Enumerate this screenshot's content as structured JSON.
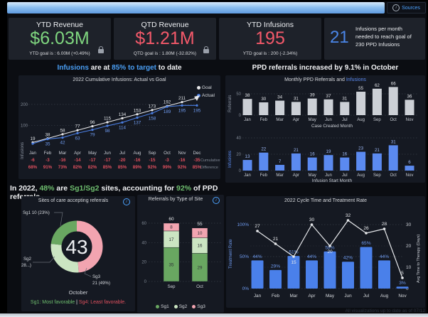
{
  "icons": {
    "info": "i"
  },
  "top_bar": {
    "sources_label": "Sources"
  },
  "kpi_cards": [
    {
      "title": "YTD Revenue",
      "value": "$6.03M",
      "footer": "YTD goal is : 6.00M (+0.49%)"
    },
    {
      "title": "QTD Revenue",
      "value": "$1.21M",
      "footer": "QTD goal is : 1.80M (-32.82%)"
    },
    {
      "title": "YTD Infusions",
      "value": "195",
      "footer": "YTD goal is : 200 (-2.34%)"
    },
    {
      "value": "21",
      "text": "Infusions per month needed to reach goal of 230 PPD Infusions"
    }
  ],
  "headlines": {
    "infusions": [
      {
        "t": "Infusions"
      },
      {
        "t": " are at "
      },
      {
        "t": "85% to target"
      },
      {
        "t": " to date"
      }
    ],
    "referrals": "PPD referrals increased by 9.1% in October",
    "sites": [
      {
        "t": "In 2022, "
      },
      {
        "t": "48%"
      },
      {
        "t": " are "
      },
      {
        "t": "Sg1/Sg2"
      },
      {
        "t": " sites, accounting for "
      },
      {
        "t": "92%"
      },
      {
        "t": " of PPD referrals"
      }
    ]
  },
  "footnote": "All visualizations up to date as of 07/12",
  "chart_data": [
    {
      "id": "cumulative",
      "type": "line",
      "title": "2022 Cumulative Infusions: Actual vs Goal",
      "ylabel": "Infusions",
      "categories": [
        "Jan",
        "Feb",
        "Mar",
        "Apr",
        "May",
        "Jun",
        "Jul",
        "Aug",
        "Sep",
        "Oct",
        "Nov",
        "Dec"
      ],
      "series": [
        {
          "name": "Goal",
          "color": "#e8e8ea",
          "values": [
            19,
            38,
            58,
            77,
            96,
            115,
            134,
            153,
            173,
            192,
            211,
            230
          ],
          "labels": [
            19,
            38,
            58,
            77,
            96,
            115,
            134,
            153,
            173,
            192,
            211,
            null
          ]
        },
        {
          "name": "Actual",
          "color": "#4a7de0",
          "values": [
            13,
            35,
            42,
            63,
            79,
            98,
            114,
            137,
            158,
            189,
            195,
            195
          ],
          "labels": [
            null,
            35,
            42,
            63,
            79,
            98,
            114,
            137,
            158,
            189,
            195,
            195
          ]
        }
      ],
      "cumulative_difference": [
        -6,
        -3,
        -16,
        -14,
        -17,
        -17,
        -20,
        -16,
        -15,
        -3,
        -16,
        -35
      ],
      "percent_to_goal": [
        "68%",
        "91%",
        "73%",
        "82%",
        "82%",
        "85%",
        "85%",
        "89%",
        "92%",
        "99%",
        "92%",
        "85%"
      ],
      "row_labels": [
        "Cumulative",
        "Difference"
      ],
      "yticks": [
        100,
        200
      ],
      "ylim": [
        0,
        230
      ],
      "legend_position": "top-right",
      "grid": "dotted"
    },
    {
      "id": "monthly_referrals",
      "type": "bar",
      "title_parts": [
        {
          "t": "Monthly PPD Referrals and "
        },
        {
          "t": "Infusions"
        }
      ],
      "ylabel": "Referrals",
      "xlabel": "Case Created Month",
      "categories": [
        "Jan",
        "Feb",
        "Mar",
        "Apr",
        "May",
        "Jun",
        "Jul",
        "Aug",
        "Sep",
        "Oct",
        "Nov"
      ],
      "values": [
        38,
        30,
        34,
        31,
        39,
        37,
        31,
        55,
        62,
        66,
        36
      ],
      "bar_color": "#ccd0d6",
      "yticks": [
        0,
        50
      ],
      "ylim": [
        0,
        70
      ]
    },
    {
      "id": "monthly_infusions",
      "type": "bar",
      "ylabel": "Infusions",
      "xlabel": "Infusion Start Month",
      "categories": [
        "Jan",
        "Feb",
        "Mar",
        "Apr",
        "May",
        "Jun",
        "Jul",
        "Aug",
        "Sep",
        "Oct",
        "Nov"
      ],
      "values": [
        13,
        22,
        7,
        21,
        16,
        19,
        16,
        23,
        21,
        31,
        6
      ],
      "bar_color": "#5b8af0",
      "yticks": [
        0,
        20,
        40
      ],
      "ylim": [
        0,
        40
      ]
    },
    {
      "id": "sites_donut",
      "type": "pie",
      "title": "Sites of care accepting referrals",
      "center_total": "43",
      "slices": [
        {
          "name": "Sg3",
          "value": 21,
          "pct": "49%",
          "color": "#f2a4b0",
          "label_line1": "Sg3",
          "label_line2": "21 (49%)"
        },
        {
          "name": "Sg2",
          "value": 12,
          "pct": "28%",
          "color": "#cbe5c2",
          "label_line1": "Sg2",
          "label_line2": "12 (28...)"
        },
        {
          "name": "Sg1",
          "value": 10,
          "pct": "23%",
          "color": "#69a761",
          "label_line1": "Sg1 10 (23%)",
          "label_line2": ""
        }
      ],
      "period_label": "October",
      "footnote_parts": [
        {
          "t": "Sg1: Most favorable"
        },
        {
          "t": " | "
        },
        {
          "t": "Sg4: Least favorable."
        }
      ]
    },
    {
      "id": "referrals_by_site_type",
      "type": "bar",
      "stacked": true,
      "title": "Referrals by Type of Site",
      "categories": [
        "Sep",
        "Oct"
      ],
      "series": [
        {
          "name": "Sg1",
          "color": "#69a761",
          "values": [
            35,
            29
          ]
        },
        {
          "name": "Sg2",
          "color": "#cbe5c2",
          "values": [
            17,
            16
          ]
        },
        {
          "name": "Sg3",
          "color": "#f2a4b0",
          "values": [
            8,
            10
          ]
        }
      ],
      "totals": [
        60,
        55
      ],
      "yticks": [
        0,
        20,
        40,
        60
      ],
      "ylim": [
        0,
        65
      ],
      "legend_position": "bottom"
    },
    {
      "id": "cycle_time",
      "type": "combo",
      "title": "2022 Cycle Time and Treatment Rate",
      "categories": [
        "Jan",
        "Feb",
        "Mar",
        "Apr",
        "May",
        "Jun",
        "Jul",
        "Aug",
        "Nov"
      ],
      "bars": {
        "name": "Treatment Rate",
        "color": "#4a80ea",
        "values_pct": [
          44,
          29,
          51,
          44,
          58,
          42,
          65,
          44,
          3
        ]
      },
      "line": {
        "name": "Avg Time to Therapy (Days)",
        "color": "#e6e8eb",
        "values_days": [
          27,
          21,
          15,
          30,
          20,
          32,
          26,
          28,
          5
        ],
        "label_below": [
          false,
          false,
          true,
          false,
          true,
          false,
          false,
          false,
          false
        ]
      },
      "left_axis": {
        "ticks": [
          "0%",
          "50%",
          "100%"
        ],
        "label": "Treatment Rate",
        "max": 100
      },
      "right_axis": {
        "ticks": [
          "0",
          "10",
          "20",
          "30"
        ],
        "label": "Avg Time to Therapy (Days)",
        "max": 30
      }
    }
  ]
}
